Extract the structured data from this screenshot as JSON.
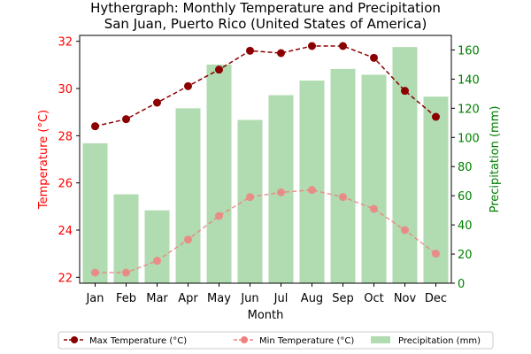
{
  "chart_data": {
    "type": "bar+line",
    "title": "Hythergraph: Monthly Temperature and Precipitation",
    "subtitle": "San Juan, Puerto Rico (United States of America)",
    "xlabel": "Month",
    "ylabel_left": "Temperature (°C)",
    "ylabel_right": "Precipitation (mm)",
    "categories": [
      "Jan",
      "Feb",
      "Mar",
      "Apr",
      "May",
      "Jun",
      "Jul",
      "Aug",
      "Sep",
      "Oct",
      "Nov",
      "Dec"
    ],
    "ylim_left": [
      21.75,
      32.25
    ],
    "ylim_right": [
      0,
      170
    ],
    "yticks_left": [
      22,
      24,
      26,
      28,
      30,
      32
    ],
    "yticks_right": [
      0,
      20,
      40,
      60,
      80,
      100,
      120,
      140,
      160
    ],
    "legend_position": "bottom-center",
    "grid": false,
    "series": [
      {
        "name": "Max Temperature (°C)",
        "kind": "line",
        "axis": "left",
        "color": "#8b0000",
        "values": [
          28.4,
          28.7,
          29.4,
          30.1,
          30.8,
          31.6,
          31.5,
          31.8,
          31.8,
          31.3,
          29.9,
          28.8
        ]
      },
      {
        "name": "Min Temperature (°C)",
        "kind": "line",
        "axis": "left",
        "color": "#f08080",
        "values": [
          22.2,
          22.2,
          22.7,
          23.6,
          24.6,
          25.4,
          25.6,
          25.7,
          25.4,
          24.9,
          24.0,
          23.0
        ]
      },
      {
        "name": "Precipitation (mm)",
        "kind": "bar",
        "axis": "right",
        "color": "#9ed29e",
        "values": [
          96,
          61,
          50,
          120,
          150,
          112,
          129,
          139,
          147,
          143,
          162,
          128
        ]
      }
    ]
  },
  "colors": {
    "left_axis": "#ff0000",
    "right_axis": "#008000"
  }
}
